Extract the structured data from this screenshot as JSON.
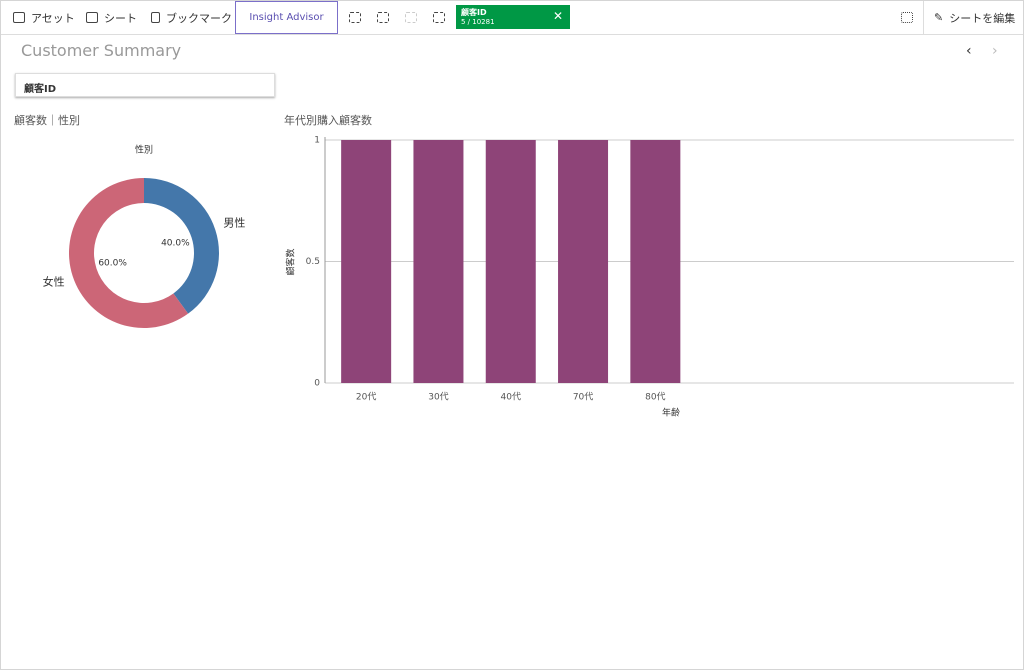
{
  "toolbar": {
    "assets": "アセット",
    "sheets": "シート",
    "bookmarks": "ブックマーク",
    "insight": "Insight Advisor",
    "edit": "シートを編集"
  },
  "selection": {
    "field": "顧客ID",
    "count": "5 / 10281"
  },
  "sheet": {
    "title": "Customer Summary"
  },
  "filter": {
    "label": "顧客ID"
  },
  "chart_data": [
    {
      "type": "pie",
      "title": "顧客数｜性別",
      "subtitle": "性別",
      "donut": true,
      "categories": [
        "男性",
        "女性"
      ],
      "values": [
        40,
        60
      ],
      "value_labels": [
        "40.0%",
        "60.0%"
      ],
      "colors": [
        "#4477aa",
        "#cc6677"
      ]
    },
    {
      "type": "bar",
      "title": "年代別購入顧客数",
      "x_label": "年齢",
      "y_label": "顧客数",
      "categories": [
        "20代",
        "30代",
        "40代",
        "70代",
        "80代"
      ],
      "values": [
        1,
        1,
        1,
        1,
        1
      ],
      "color": "#8e4478",
      "ylim": [
        0,
        1
      ],
      "yticks": [
        0,
        0.5,
        1
      ],
      "grid": true
    }
  ]
}
